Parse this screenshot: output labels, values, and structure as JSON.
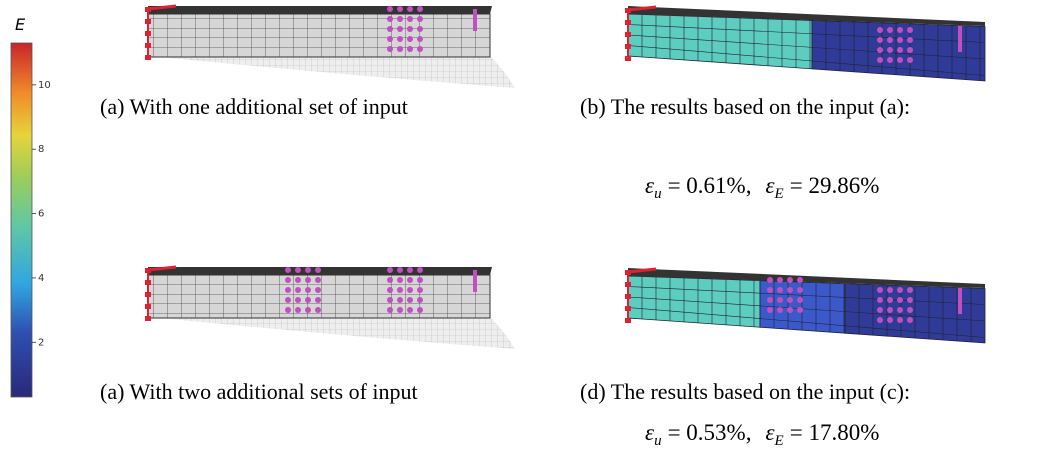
{
  "colorbar": {
    "label": "E",
    "lim": [
      0.3,
      11.3
    ],
    "ticks": [
      2,
      4,
      6,
      8,
      10
    ]
  },
  "panels": [
    {
      "caption": "(a)  With one additional set of input"
    },
    {
      "caption": "(b)  The results based on the input (a):",
      "metrics": [
        {
          "symbol": "ε",
          "sub": "u",
          "value": "= 0.61%,"
        },
        {
          "symbol": "ε",
          "sub": "E",
          "value": "= 29.86%"
        }
      ]
    },
    {
      "caption": "(a)  With two additional sets of input"
    },
    {
      "caption": "(d)  The results based on the input (c):",
      "metrics": [
        {
          "symbol": "ε",
          "sub": "u",
          "value": "= 0.53%,"
        },
        {
          "symbol": "ε",
          "sub": "E",
          "value": "= 17.80%"
        }
      ]
    }
  ]
}
